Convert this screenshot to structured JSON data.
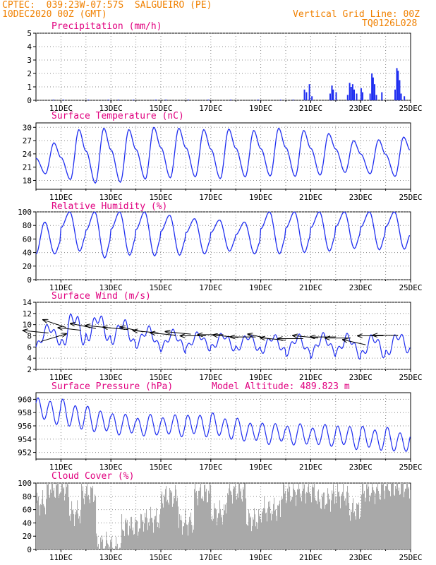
{
  "header": {
    "line1": "CPTEC:  039:23W-07:57S  SALGUEIRO (PE)",
    "line2": "10DEC2020 00Z (GMT)",
    "right1": "Vertical Grid Line: 00Z",
    "right2": "TQ0126L028"
  },
  "chart_data": [
    {
      "type": "bar",
      "title": "Precipitation (mm/h)",
      "ylim": [
        0,
        5
      ],
      "yticks": [
        0,
        1,
        2,
        3,
        4,
        5
      ],
      "x_ticks": [
        "11DEC",
        "13DEC",
        "15DEC",
        "17DEC",
        "19DEC",
        "21DEC",
        "23DEC",
        "25DEC"
      ],
      "x_tick_days": [
        1,
        3,
        5,
        7,
        9,
        11,
        13,
        15
      ],
      "color": "#1f2ef0",
      "events": [
        {
          "day": 0.7,
          "value": 0.05
        },
        {
          "day": 1.1,
          "value": 0.05
        },
        {
          "day": 2.1,
          "value": 0.05
        },
        {
          "day": 2.9,
          "value": 0.05
        },
        {
          "day": 3.3,
          "value": 0.05
        },
        {
          "day": 3.9,
          "value": 0.05
        },
        {
          "day": 4.8,
          "value": 0.05
        },
        {
          "day": 5.2,
          "value": 0.05
        },
        {
          "day": 6.1,
          "value": 0.05
        },
        {
          "day": 6.9,
          "value": 0.05
        },
        {
          "day": 7.8,
          "value": 0.05
        },
        {
          "day": 8.9,
          "value": 0.05
        },
        {
          "day": 9.8,
          "value": 0.05
        },
        {
          "day": 10.3,
          "value": 0.05
        },
        {
          "day": 10.75,
          "value": 0.8
        },
        {
          "day": 10.83,
          "value": 0.6
        },
        {
          "day": 10.95,
          "value": 1.2
        },
        {
          "day": 11.05,
          "value": 0.3
        },
        {
          "day": 11.78,
          "value": 0.5
        },
        {
          "day": 11.85,
          "value": 1.1
        },
        {
          "day": 11.9,
          "value": 0.8
        },
        {
          "day": 12.02,
          "value": 0.6
        },
        {
          "day": 12.48,
          "value": 0.4
        },
        {
          "day": 12.56,
          "value": 1.3
        },
        {
          "day": 12.62,
          "value": 1.0
        },
        {
          "day": 12.68,
          "value": 1.2
        },
        {
          "day": 12.74,
          "value": 0.8
        },
        {
          "day": 12.84,
          "value": 0.5
        },
        {
          "day": 13.02,
          "value": 0.9
        },
        {
          "day": 13.08,
          "value": 0.6
        },
        {
          "day": 13.38,
          "value": 0.5
        },
        {
          "day": 13.45,
          "value": 2.0
        },
        {
          "day": 13.5,
          "value": 1.7
        },
        {
          "day": 13.56,
          "value": 1.2
        },
        {
          "day": 13.63,
          "value": 0.4
        },
        {
          "day": 13.85,
          "value": 0.6
        },
        {
          "day": 14.38,
          "value": 0.8
        },
        {
          "day": 14.45,
          "value": 2.4
        },
        {
          "day": 14.5,
          "value": 2.2
        },
        {
          "day": 14.56,
          "value": 1.5
        },
        {
          "day": 14.62,
          "value": 0.5
        },
        {
          "day": 14.75,
          "value": 0.3
        }
      ]
    },
    {
      "type": "line",
      "title": "Surface Temperature (nC)",
      "ylim": [
        16,
        31
      ],
      "yticks": [
        18,
        21,
        24,
        27,
        30
      ],
      "x_ticks": [
        "11DEC",
        "13DEC",
        "15DEC",
        "17DEC",
        "19DEC",
        "21DEC",
        "23DEC",
        "25DEC"
      ],
      "x_tick_days": [
        1,
        3,
        5,
        7,
        9,
        11,
        13,
        15
      ],
      "color": "#1f2ef0",
      "daily_max": [
        26.5,
        29.5,
        29.8,
        29.5,
        30.0,
        29.8,
        29.5,
        29.6,
        29.3,
        29.8,
        29.3,
        28.6,
        27.0,
        27.2,
        27.8,
        27.8
      ],
      "daily_min": [
        19.5,
        18.2,
        17.4,
        17.6,
        18.3,
        18.6,
        18.8,
        18.4,
        18.8,
        19.0,
        18.9,
        19.2,
        19.8,
        19.5,
        18.9,
        20.0
      ]
    },
    {
      "type": "line",
      "title": "Relative Humidity (%)",
      "ylim": [
        0,
        100
      ],
      "yticks": [
        0,
        20,
        40,
        60,
        80,
        100
      ],
      "x_ticks": [
        "11DEC",
        "13DEC",
        "15DEC",
        "17DEC",
        "19DEC",
        "21DEC",
        "23DEC",
        "25DEC"
      ],
      "x_tick_days": [
        1,
        3,
        5,
        7,
        9,
        11,
        13,
        15
      ],
      "color": "#1f2ef0",
      "daily_max": [
        85,
        100,
        100,
        100,
        100,
        95,
        90,
        88,
        85,
        100,
        100,
        100,
        100,
        100,
        100,
        100
      ],
      "daily_min": [
        38,
        42,
        32,
        36,
        35,
        36,
        38,
        42,
        38,
        38,
        40,
        42,
        46,
        44,
        45,
        48
      ]
    },
    {
      "type": "line",
      "title": "Surface Wind (m/s)",
      "ylim": [
        2,
        14
      ],
      "yticks": [
        2,
        4,
        6,
        8,
        10,
        12,
        14
      ],
      "x_ticks": [
        "11DEC",
        "13DEC",
        "15DEC",
        "17DEC",
        "19DEC",
        "21DEC",
        "23DEC",
        "25DEC"
      ],
      "x_tick_days": [
        1,
        3,
        5,
        7,
        9,
        11,
        13,
        15
      ],
      "color": "#1f2ef0",
      "daily_mean": [
        7.5,
        8.5,
        9.5,
        9.0,
        8.0,
        7.2,
        7.0,
        7.0,
        6.8,
        6.6,
        6.4,
        6.2,
        6.5,
        6.0,
        6.2,
        6.8
      ],
      "daily_amp": [
        1.5,
        2.5,
        2.0,
        1.8,
        1.5,
        1.4,
        1.2,
        1.2,
        1.2,
        1.3,
        1.4,
        1.5,
        1.5,
        1.6,
        1.6,
        1.5
      ],
      "arrows": [
        {
          "day": 0.2,
          "u": 1.0,
          "v": 0.3,
          "y": 7.0
        },
        {
          "day": 0.5,
          "u": -1.0,
          "v": 0.1,
          "y": 8.5
        },
        {
          "day": 1.2,
          "u": -0.9,
          "v": 0.3,
          "y": 9.5
        },
        {
          "day": 1.8,
          "u": -0.9,
          "v": 0.1,
          "y": 9.0
        },
        {
          "day": 2.4,
          "u": -1.0,
          "v": 0.2,
          "y": 9.3
        },
        {
          "day": 3.0,
          "u": -1.0,
          "v": 0.1,
          "y": 9.4
        },
        {
          "day": 3.7,
          "u": -1.0,
          "v": 0.1,
          "y": 9.1
        },
        {
          "day": 4.3,
          "u": -0.9,
          "v": 0.2,
          "y": 8.7
        },
        {
          "day": 4.9,
          "u": -1.0,
          "v": 0.1,
          "y": 8.5
        },
        {
          "day": 5.6,
          "u": -1.0,
          "v": 0.1,
          "y": 8.1
        },
        {
          "day": 6.2,
          "u": -1.0,
          "v": 0.1,
          "y": 8.3
        },
        {
          "day": 6.8,
          "u": -1.0,
          "v": 0.0,
          "y": 8.0
        },
        {
          "day": 7.5,
          "u": -1.0,
          "v": 0.0,
          "y": 8.2
        },
        {
          "day": 8.1,
          "u": -1.0,
          "v": 0.1,
          "y": 7.7
        },
        {
          "day": 8.8,
          "u": -1.0,
          "v": 0.0,
          "y": 7.8
        },
        {
          "day": 9.4,
          "u": -0.9,
          "v": 0.2,
          "y": 7.4
        },
        {
          "day": 10.0,
          "u": -1.0,
          "v": 0.1,
          "y": 7.2
        },
        {
          "day": 10.7,
          "u": -1.0,
          "v": 0.0,
          "y": 7.5
        },
        {
          "day": 11.3,
          "u": -1.0,
          "v": 0.1,
          "y": 7.6
        },
        {
          "day": 12.0,
          "u": -1.0,
          "v": 0.0,
          "y": 7.8
        },
        {
          "day": 12.6,
          "u": -1.0,
          "v": 0.0,
          "y": 7.6
        },
        {
          "day": 13.2,
          "u": -0.9,
          "v": 0.2,
          "y": 6.4
        },
        {
          "day": 13.9,
          "u": -1.0,
          "v": 0.0,
          "y": 8.0
        },
        {
          "day": 14.5,
          "u": -1.0,
          "v": 0.0,
          "y": 8.1
        }
      ]
    },
    {
      "type": "line",
      "title": "Surface Pressure (hPa)",
      "annotation": "Model Altitude: 489.823 m",
      "ylim": [
        951,
        961
      ],
      "yticks": [
        952,
        954,
        956,
        958,
        960
      ],
      "x_ticks": [
        "11DEC",
        "13DEC",
        "15DEC",
        "17DEC",
        "19DEC",
        "21DEC",
        "23DEC",
        "25DEC"
      ],
      "x_tick_days": [
        1,
        3,
        5,
        7,
        9,
        11,
        13,
        15
      ],
      "color": "#1f2ef0",
      "daily_mean": [
        958.5,
        958.0,
        957.2,
        956.5,
        956.0,
        956.0,
        956.0,
        956.2,
        955.5,
        955.0,
        954.8,
        954.5,
        954.5,
        954.2,
        954.0,
        953.5
      ],
      "daily_amp": [
        1.8,
        2.0,
        1.8,
        1.6,
        1.6,
        1.6,
        1.7,
        1.7,
        1.6,
        1.6,
        1.6,
        1.6,
        1.7,
        1.7,
        1.7,
        1.6
      ]
    },
    {
      "type": "bar",
      "title": "Cloud Cover (%)",
      "ylim": [
        0,
        100
      ],
      "yticks": [
        0,
        20,
        40,
        60,
        80,
        100
      ],
      "x_ticks": [
        "11DEC",
        "13DEC",
        "15DEC",
        "17DEC",
        "19DEC",
        "21DEC",
        "23DEC",
        "25DEC"
      ],
      "x_tick_days": [
        1,
        3,
        5,
        7,
        9,
        11,
        13,
        15
      ],
      "color": "#a9a9a9",
      "segment_levels": [
        {
          "from": 0.0,
          "to": 0.4,
          "level": 70
        },
        {
          "from": 0.4,
          "to": 1.3,
          "level": 92
        },
        {
          "from": 1.3,
          "to": 1.8,
          "level": 55
        },
        {
          "from": 1.8,
          "to": 2.4,
          "level": 85
        },
        {
          "from": 2.4,
          "to": 3.0,
          "level": 8
        },
        {
          "from": 3.0,
          "to": 3.4,
          "level": 2
        },
        {
          "from": 3.4,
          "to": 4.2,
          "level": 35
        },
        {
          "from": 4.2,
          "to": 5.0,
          "level": 45
        },
        {
          "from": 5.0,
          "to": 5.7,
          "level": 80
        },
        {
          "from": 5.7,
          "to": 6.3,
          "level": 40
        },
        {
          "from": 6.3,
          "to": 7.0,
          "level": 85
        },
        {
          "from": 7.0,
          "to": 7.6,
          "level": 55
        },
        {
          "from": 7.6,
          "to": 8.4,
          "level": 88
        },
        {
          "from": 8.4,
          "to": 9.0,
          "level": 45
        },
        {
          "from": 9.0,
          "to": 9.8,
          "level": 60
        },
        {
          "from": 9.8,
          "to": 10.4,
          "level": 85
        },
        {
          "from": 10.4,
          "to": 11.2,
          "level": 88
        },
        {
          "from": 11.2,
          "to": 11.8,
          "level": 75
        },
        {
          "from": 11.8,
          "to": 12.5,
          "level": 82
        },
        {
          "from": 12.5,
          "to": 13.0,
          "level": 60
        },
        {
          "from": 13.0,
          "to": 13.8,
          "level": 88
        },
        {
          "from": 13.8,
          "to": 15.0,
          "level": 95
        }
      ]
    }
  ]
}
